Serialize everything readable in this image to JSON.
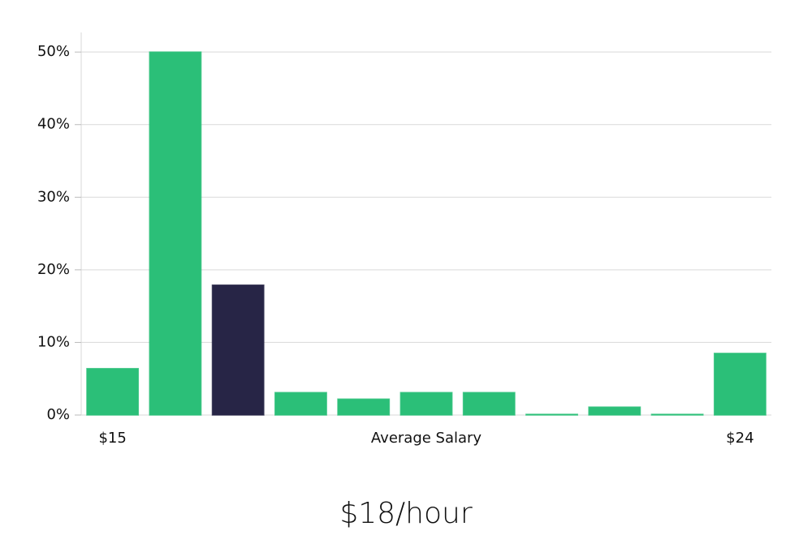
{
  "chart_data": {
    "type": "bar",
    "categories": [
      "$15",
      null,
      null,
      null,
      null,
      null,
      null,
      null,
      null,
      null,
      "$24"
    ],
    "values": [
      6.4,
      50,
      17.9,
      3.1,
      2.2,
      3.1,
      3.1,
      0.1,
      1.1,
      0.1,
      8.5
    ],
    "colors": [
      "#2bbf78",
      "#2bbf78",
      "#272546",
      "#2bbf78",
      "#2bbf78",
      "#2bbf78",
      "#2bbf78",
      "#2bbf78",
      "#2bbf78",
      "#2bbf78",
      "#2bbf78"
    ],
    "xlabel": "Average Salary",
    "annotation": "$18/hour",
    "ylim": [
      0,
      52.7
    ],
    "yticks": [
      {
        "value": 0,
        "label": "0%"
      },
      {
        "value": 10,
        "label": "10%"
      },
      {
        "value": 20,
        "label": "20%"
      },
      {
        "value": 30,
        "label": "30%"
      },
      {
        "value": 40,
        "label": "40%"
      },
      {
        "value": 50,
        "label": "50%"
      }
    ],
    "grid": true
  }
}
